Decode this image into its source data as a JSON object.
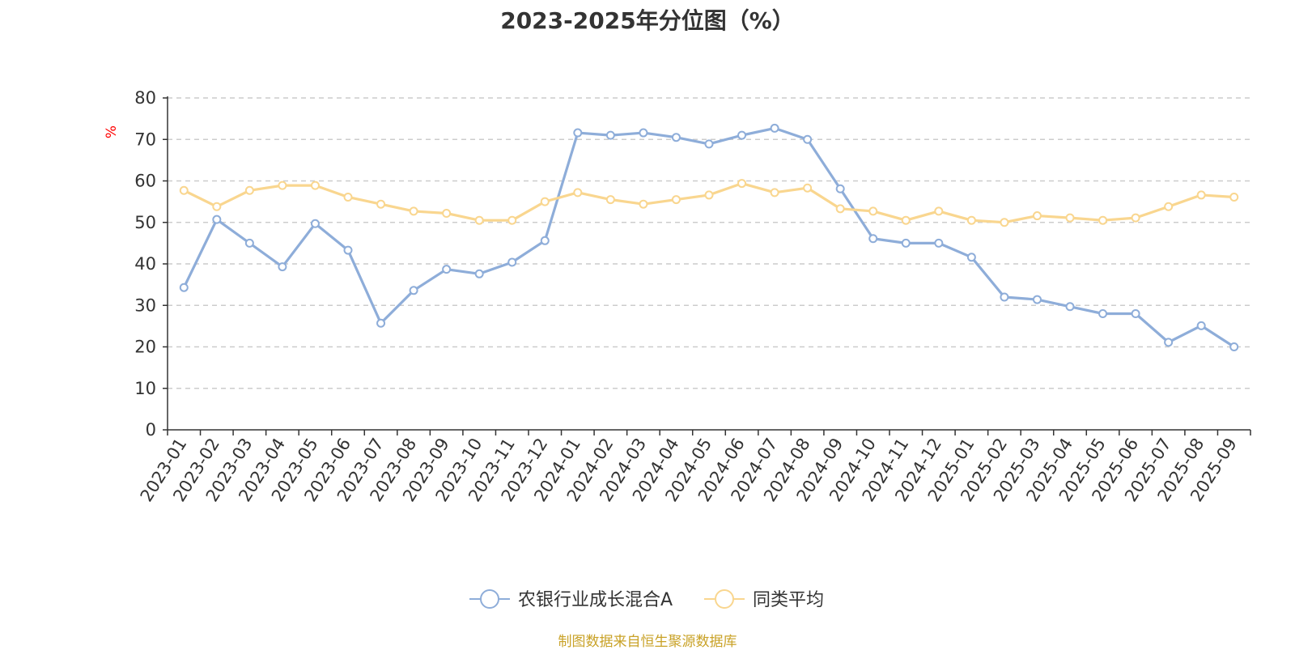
{
  "chart_data": {
    "type": "line",
    "title": "2023-2025年分位图（%）",
    "ylabel": "%",
    "ylim": [
      0,
      80
    ],
    "yticks": [
      0,
      10,
      20,
      30,
      40,
      50,
      60,
      70,
      80
    ],
    "grid": true,
    "legend_position": "bottom",
    "x": [
      "2023-01",
      "2023-02",
      "2023-03",
      "2023-04",
      "2023-05",
      "2023-06",
      "2023-07",
      "2023-08",
      "2023-09",
      "2023-10",
      "2023-11",
      "2023-12",
      "2024-01",
      "2024-02",
      "2024-03",
      "2024-04",
      "2024-05",
      "2024-06",
      "2024-07",
      "2024-08",
      "2024-09",
      "2024-10",
      "2024-11",
      "2024-12",
      "2025-01",
      "2025-02",
      "2025-03",
      "2025-04",
      "2025-05",
      "2025-06",
      "2025-07",
      "2025-08",
      "2025-09"
    ],
    "series": [
      {
        "name": "农银行业成长混合A",
        "color": "#8eadd9",
        "values": [
          34.3,
          50.7,
          45.0,
          39.3,
          49.7,
          43.3,
          25.7,
          33.6,
          38.7,
          37.6,
          40.4,
          45.6,
          71.6,
          71.0,
          71.6,
          70.5,
          68.9,
          71.0,
          72.7,
          70.0,
          58.1,
          46.1,
          45.0,
          45.0,
          41.6,
          32.0,
          31.4,
          29.7,
          28.0,
          28.0,
          21.1,
          25.1,
          20.0
        ]
      },
      {
        "name": "同类平均",
        "color": "#f9d68f",
        "values": [
          57.7,
          53.8,
          57.7,
          58.9,
          58.9,
          56.1,
          54.4,
          52.7,
          52.2,
          50.5,
          50.5,
          55.0,
          57.2,
          55.5,
          54.4,
          55.5,
          56.6,
          59.4,
          57.2,
          58.3,
          53.3,
          52.7,
          50.5,
          52.7,
          50.5,
          50.0,
          51.6,
          51.1,
          50.5,
          51.1,
          53.8,
          56.6,
          56.1
        ]
      }
    ]
  },
  "footer": {
    "source": "制图数据来自恒生聚源数据库",
    "source_color": "#c9a227"
  }
}
